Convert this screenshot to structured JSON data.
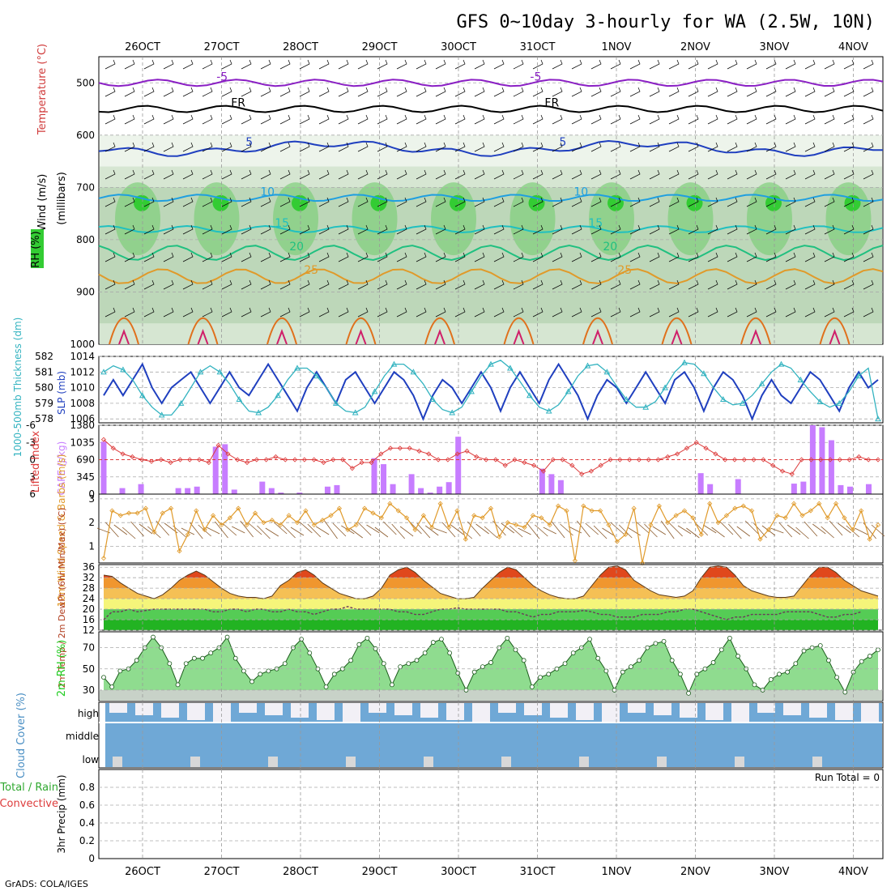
{
  "title": "GFS 0~10day 3-hourly for WA (2.5W, 10N)",
  "footer": "GrADS: COLA/IGES",
  "dates": [
    "26OCT",
    "27OCT",
    "28OCT",
    "29OCT",
    "30OCT",
    "31OCT",
    "1NOV",
    "2NOV",
    "3NOV",
    "4NOV"
  ],
  "colors": {
    "rh_green": "#33cc33",
    "slp": "#1f3fbf",
    "thickness": "#33b3c0",
    "lifted_index": "#dd3b3b",
    "cape": "#c77dff",
    "wind_speed": "#e09a2a",
    "rh2m": "#1fcc1f",
    "cloud": "#6fa8d6",
    "temp_hot": "#e0481c"
  },
  "chart_data": [
    {
      "type": "area",
      "panel": "upper-air",
      "ylabels": [
        "Wind (m/s)",
        "Temperature (°C)",
        "RH (%)"
      ],
      "yaxis_label": "(millibars)",
      "yticks": [
        500,
        600,
        700,
        800,
        900,
        1000
      ],
      "ylim": [
        1000,
        450
      ],
      "isotherms": [
        {
          "name": "-5",
          "pressure": 500,
          "color": "#8a1fc4"
        },
        {
          "name": "FR",
          "pressure": 550,
          "color": "#000000"
        },
        {
          "name": "5",
          "pressure": 625,
          "color": "#1f3fbf"
        },
        {
          "name": "10",
          "pressure": 720,
          "color": "#1f9fe0"
        },
        {
          "name": "15",
          "pressure": 780,
          "color": "#20c0c0"
        },
        {
          "name": "20",
          "pressure": 825,
          "color": "#20c080"
        },
        {
          "name": "25",
          "pressure": 870,
          "color": "#e09a2a"
        }
      ]
    },
    {
      "type": "line",
      "panel": "slp-thickness",
      "ylabel_left": "1000-500mb Thickness (dm)",
      "ylabel_right": "SLP (mb)",
      "yticks_thickness": [
        578,
        579,
        580,
        581,
        582
      ],
      "yticks_slp": [
        1006,
        1008,
        1010,
        1012,
        1014
      ],
      "ylim_slp": [
        1005.5,
        1014
      ],
      "series": [
        {
          "name": "SLP (mb)",
          "values": [
            1009,
            1011,
            1009,
            1011,
            1013,
            1010,
            1008,
            1010,
            1011,
            1012,
            1010,
            1008,
            1010,
            1012,
            1010,
            1009,
            1011,
            1013,
            1011,
            1009,
            1007,
            1010,
            1012,
            1010,
            1008,
            1011,
            1012,
            1010,
            1008,
            1010,
            1012,
            1011,
            1009,
            1006,
            1009,
            1011,
            1010,
            1008,
            1010,
            1012,
            1010,
            1007,
            1010,
            1012,
            1010,
            1008,
            1011,
            1013,
            1011,
            1009,
            1006,
            1009,
            1011,
            1010,
            1008,
            1010,
            1012,
            1010,
            1008,
            1011,
            1012,
            1010,
            1007,
            1010,
            1012,
            1011,
            1009,
            1006,
            1009,
            1011,
            1009,
            1008,
            1010,
            1012,
            1011,
            1009,
            1007,
            1010,
            1012,
            1010,
            1011
          ]
        },
        {
          "name": "Thickness (dm)",
          "values": [
            1012,
            1012.8,
            1012.3,
            1011,
            1009,
            1007.5,
            1006.5,
            1006.5,
            1008,
            1010,
            1012,
            1012.8,
            1012,
            1010.5,
            1008.5,
            1007,
            1006.8,
            1007.5,
            1009,
            1011,
            1012.5,
            1012.5,
            1011.5,
            1010,
            1008,
            1007,
            1006.8,
            1007.5,
            1009.5,
            1011.5,
            1013,
            1013,
            1012,
            1010.5,
            1008.5,
            1007.2,
            1006.8,
            1007.5,
            1009.5,
            1011.5,
            1013,
            1013.5,
            1012.5,
            1010.8,
            1009,
            1007.5,
            1007,
            1007.8,
            1009.5,
            1011.5,
            1012.8,
            1013,
            1012,
            1010.2,
            1008.5,
            1007.5,
            1007.5,
            1008.2,
            1010,
            1012,
            1013.2,
            1013,
            1011.8,
            1010,
            1008.5,
            1007.8,
            1008,
            1009,
            1010.5,
            1012,
            1013,
            1012.5,
            1011,
            1009.5,
            1008.2,
            1007.5,
            1008,
            1009.5,
            1011.5,
            1012.5,
            1006
          ]
        }
      ]
    },
    {
      "type": "bar",
      "panel": "lifted-cape",
      "ylabel_left": "Lifted Index",
      "ylabel_right": "CAPE (J/kg)",
      "yticks_li": [
        -6,
        -3,
        0,
        3,
        6
      ],
      "yticks_cape": [
        0,
        345,
        690,
        1035,
        1380
      ],
      "ylim_cape": [
        0,
        1380
      ],
      "series": [
        {
          "name": "CAPE (J/kg)",
          "values": [
            1050,
            0,
            120,
            0,
            200,
            0,
            0,
            0,
            120,
            120,
            150,
            0,
            950,
            1000,
            90,
            0,
            0,
            250,
            120,
            30,
            0,
            30,
            0,
            0,
            150,
            180,
            0,
            0,
            0,
            720,
            600,
            200,
            0,
            400,
            120,
            30,
            150,
            240,
            1150,
            0,
            0,
            0,
            0,
            0,
            0,
            0,
            0,
            510,
            400,
            280,
            0,
            0,
            0,
            0,
            0,
            0,
            0,
            0,
            0,
            0,
            0,
            0,
            0,
            0,
            420,
            200,
            0,
            0,
            300,
            0,
            0,
            0,
            0,
            0,
            210,
            250,
            1380,
            1340,
            1080,
            180,
            150,
            0,
            200,
            0
          ]
        },
        {
          "name": "Lifted Index",
          "values": [
            -3.5,
            -2,
            -1,
            -0.5,
            0,
            0.3,
            0,
            0.5,
            0,
            0,
            0,
            0.5,
            -2.5,
            -1,
            0,
            0.5,
            0,
            0,
            -0.5,
            0,
            0,
            0,
            0,
            0.5,
            0,
            0,
            1.5,
            0.5,
            0.5,
            -1,
            -2,
            -2,
            -2,
            -1.5,
            -1,
            0,
            0,
            -1,
            -1.5,
            -0.5,
            0,
            0,
            1,
            0,
            0.5,
            1,
            2,
            0,
            0,
            1,
            2.5,
            2,
            1,
            0,
            0,
            0,
            0,
            0,
            0,
            -0.5,
            -1,
            -2,
            -3,
            -2,
            -1,
            0,
            0,
            0,
            0,
            0,
            1,
            2,
            2.5,
            0,
            0,
            0,
            0,
            0,
            0,
            -0.5,
            0,
            0
          ]
        }
      ]
    },
    {
      "type": "line",
      "panel": "wind10m",
      "ylabel": "10m Wind Speed & Barbs (m/s)",
      "yticks": [
        1,
        2,
        3
      ],
      "ylim": [
        0.3,
        3.2
      ],
      "values": [
        0.5,
        2.5,
        2.3,
        2.4,
        2.4,
        2.6,
        1.6,
        2.4,
        2.6,
        0.8,
        1.5,
        2.5,
        1.7,
        2.3,
        1.9,
        2.2,
        2.6,
        1.9,
        2.4,
        2,
        2.1,
        1.9,
        2.3,
        2,
        2.5,
        1.9,
        2.1,
        2.3,
        2.6,
        1.7,
        1.9,
        2.6,
        2.4,
        2.2,
        2.8,
        2.5,
        2.2,
        1.7,
        2.3,
        1.8,
        2.8,
        1.8,
        2.5,
        1.3,
        2.3,
        2.2,
        2.6,
        1.4,
        2,
        1.9,
        1.8,
        2.3,
        2.2,
        1.9,
        2.7,
        2.5,
        0.4,
        2.7,
        2.5,
        2.5,
        1.9,
        1.2,
        1.5,
        2.6,
        0.3,
        1.9,
        2.7,
        2,
        2.3,
        2.5,
        2.2,
        1.5,
        2.8,
        2,
        2.3,
        2.6,
        2.7,
        2.5,
        1.3,
        1.7,
        2.3,
        2.2,
        2.8,
        2.3,
        2.5,
        2.8,
        2.2,
        2.8,
        2.2,
        1.7,
        2.5,
        1.3,
        1.9
      ]
    },
    {
      "type": "area",
      "panel": "temp2m",
      "ylabel": "2m Temp / 2m DewPt (6hr Min/Max) (°C)",
      "yticks": [
        12,
        16,
        20,
        24,
        28,
        32,
        36
      ],
      "ylim": [
        12,
        37
      ],
      "series": [
        {
          "name": "2m Temp",
          "values": [
            33,
            32.5,
            30,
            28,
            26,
            25,
            24,
            25.5,
            28,
            31,
            33,
            34.5,
            33,
            30.5,
            28,
            26,
            25,
            24.5,
            24.5,
            24,
            25,
            29,
            31,
            34,
            35,
            33,
            30,
            28,
            26,
            25,
            24,
            24,
            25,
            28,
            33,
            35,
            36,
            34,
            31,
            28.5,
            26,
            25,
            24,
            24,
            24.5,
            28,
            31,
            34,
            36,
            35,
            32,
            29,
            27,
            25.5,
            24.5,
            24,
            24,
            25,
            29,
            33,
            36,
            36.5,
            35,
            31,
            29,
            27,
            25.5,
            25,
            24.5,
            25,
            27,
            32,
            36,
            36.5,
            36,
            33,
            29,
            27,
            26,
            25,
            24.5,
            24.5,
            25,
            29,
            33,
            36,
            36,
            34,
            31,
            29,
            27,
            26,
            25
          ]
        },
        {
          "name": "2m DewPt",
          "values": [
            16,
            19,
            19,
            20,
            19,
            19.5,
            20,
            20,
            20,
            20,
            20,
            20,
            20,
            19,
            19,
            20,
            20,
            19,
            20,
            20,
            19,
            19,
            20,
            19,
            19,
            18,
            19,
            20,
            20,
            21,
            20,
            20,
            20,
            20,
            20,
            19,
            19,
            18,
            18,
            19,
            20,
            20,
            20.5,
            20,
            20,
            20,
            20,
            20,
            19,
            19,
            18,
            17,
            18,
            18,
            19,
            19,
            19,
            19.5,
            19,
            18,
            18,
            17,
            17,
            17,
            18,
            18,
            18,
            19,
            19,
            20,
            20,
            19,
            18,
            17,
            16,
            17,
            17,
            18,
            18,
            18,
            18,
            19,
            19,
            19,
            19,
            18,
            17,
            17,
            18,
            18,
            19
          ]
        }
      ]
    },
    {
      "type": "area",
      "panel": "rh2m",
      "ylabel": "2m RH (%)",
      "yticks": [
        30,
        50,
        70
      ],
      "ylim": [
        20,
        85
      ],
      "values": [
        42,
        33,
        48,
        50,
        58,
        70,
        80,
        70,
        55,
        35,
        55,
        60,
        60,
        65,
        70,
        80,
        60,
        48,
        38,
        45,
        48,
        50,
        55,
        70,
        78,
        65,
        50,
        33,
        45,
        50,
        58,
        73,
        79,
        69,
        55,
        35,
        52,
        55,
        58,
        65,
        75,
        78,
        65,
        46,
        30,
        47,
        52,
        56,
        70,
        79,
        68,
        58,
        33,
        42,
        45,
        50,
        55,
        65,
        70,
        78,
        60,
        48,
        30,
        47,
        52,
        58,
        70,
        74,
        76,
        58,
        45,
        27,
        45,
        50,
        56,
        68,
        79,
        62,
        50,
        35,
        30,
        40,
        45,
        47,
        55,
        67,
        70,
        72,
        58,
        42,
        28,
        47,
        57,
        62,
        68
      ]
    },
    {
      "type": "bar",
      "panel": "cloud",
      "ylabel": "Cloud Cover (%)",
      "ytick_labels": [
        "high",
        "middle",
        "low"
      ]
    },
    {
      "type": "bar",
      "panel": "precip",
      "ylabel": "3hr Precip (mm)",
      "left_labels": [
        "Total / Rain",
        "Convective"
      ],
      "annotation": "Run Total = 0",
      "yticks": [
        0,
        0.2,
        0.4,
        0.6,
        0.8
      ],
      "ylim": [
        0,
        1
      ],
      "values": []
    }
  ]
}
